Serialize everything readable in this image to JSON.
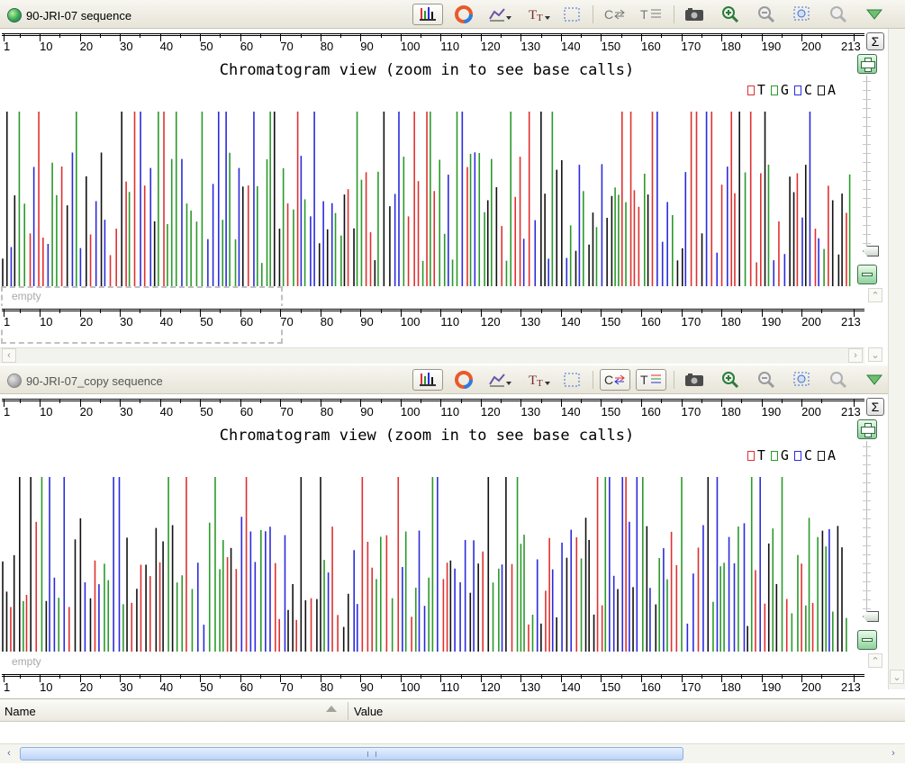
{
  "panels": [
    {
      "title": "90-JRI-07 sequence",
      "active": true,
      "chart_title": "Chromatogram view (zoom in to see base calls)",
      "empty_label": "empty",
      "legend": [
        "T",
        "G",
        "C",
        "A"
      ],
      "ruler_labels": [
        "1",
        "10",
        "20",
        "30",
        "40",
        "50",
        "60",
        "70",
        "80",
        "90",
        "100",
        "110",
        "120",
        "130",
        "140",
        "150",
        "160",
        "170",
        "180",
        "190",
        "200",
        "213"
      ]
    },
    {
      "title": "90-JRI-07_copy sequence",
      "active": false,
      "chart_title": "Chromatogram view (zoom in to see base calls)",
      "empty_label": "empty",
      "legend": [
        "T",
        "G",
        "C",
        "A"
      ],
      "ruler_labels": [
        "1",
        "10",
        "20",
        "30",
        "40",
        "50",
        "60",
        "70",
        "80",
        "90",
        "100",
        "110",
        "120",
        "130",
        "140",
        "150",
        "160",
        "170",
        "180",
        "190",
        "200",
        "213"
      ]
    }
  ],
  "toolbar_icons": [
    "chromatogram-icon",
    "color-wheel-icon",
    "graph-dropdown-icon",
    "font-size-dropdown-icon",
    "select-region-icon",
    "complement-icon",
    "translation-icon",
    "camera-icon",
    "zoom-in-icon",
    "zoom-out-icon",
    "zoom-to-fit-icon",
    "zoom-to-selection-icon",
    "collapse-icon"
  ],
  "sigma_symbol": "Σ",
  "properties": {
    "col_name": "Name",
    "col_value": "Value"
  },
  "colors": {
    "T": "#e03030",
    "G": "#2a9a2a",
    "C": "#2b2bdd",
    "A": "#111111"
  }
}
